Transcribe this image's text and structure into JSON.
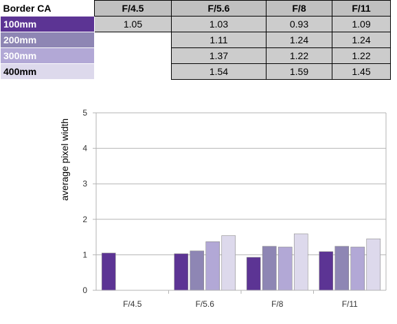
{
  "table": {
    "corner_label": "Border CA",
    "columns": [
      "F/4.5",
      "F/5.6",
      "F/8",
      "F/11"
    ],
    "rows": [
      {
        "label": "100mm",
        "color": "#5c3494",
        "text_color": "#ffffff",
        "cells": [
          "1.05",
          "1.03",
          "0.93",
          "1.09"
        ]
      },
      {
        "label": "200mm",
        "color": "#8e86b4",
        "text_color": "#ffffff",
        "cells": [
          "",
          "1.11",
          "1.24",
          "1.24"
        ]
      },
      {
        "label": "300mm",
        "color": "#b2a8d6",
        "text_color": "#ffffff",
        "cells": [
          "",
          "1.37",
          "1.22",
          "1.22"
        ]
      },
      {
        "label": "400mm",
        "color": "#ddd9ec",
        "text_color": "#000000",
        "cells": [
          "",
          "1.54",
          "1.59",
          "1.45"
        ]
      }
    ]
  },
  "chart_data": {
    "type": "bar",
    "title": "",
    "xlabel": "",
    "ylabel": "average pixel width",
    "categories": [
      "F/4.5",
      "F/5.6",
      "F/8",
      "F/11"
    ],
    "ylim": [
      0,
      5
    ],
    "yticks": [
      "0",
      "1",
      "2",
      "3",
      "4",
      "5"
    ],
    "grid": true,
    "legend": "none",
    "series": [
      {
        "name": "100mm",
        "color": "#5c3494",
        "values": [
          1.05,
          1.03,
          0.93,
          1.09
        ]
      },
      {
        "name": "200mm",
        "color": "#8e86b4",
        "values": [
          null,
          1.11,
          1.24,
          1.24
        ]
      },
      {
        "name": "300mm",
        "color": "#b2a8d6",
        "values": [
          null,
          1.37,
          1.22,
          1.22
        ]
      },
      {
        "name": "400mm",
        "color": "#ddd9ec",
        "values": [
          null,
          1.54,
          1.59,
          1.45
        ]
      }
    ]
  }
}
